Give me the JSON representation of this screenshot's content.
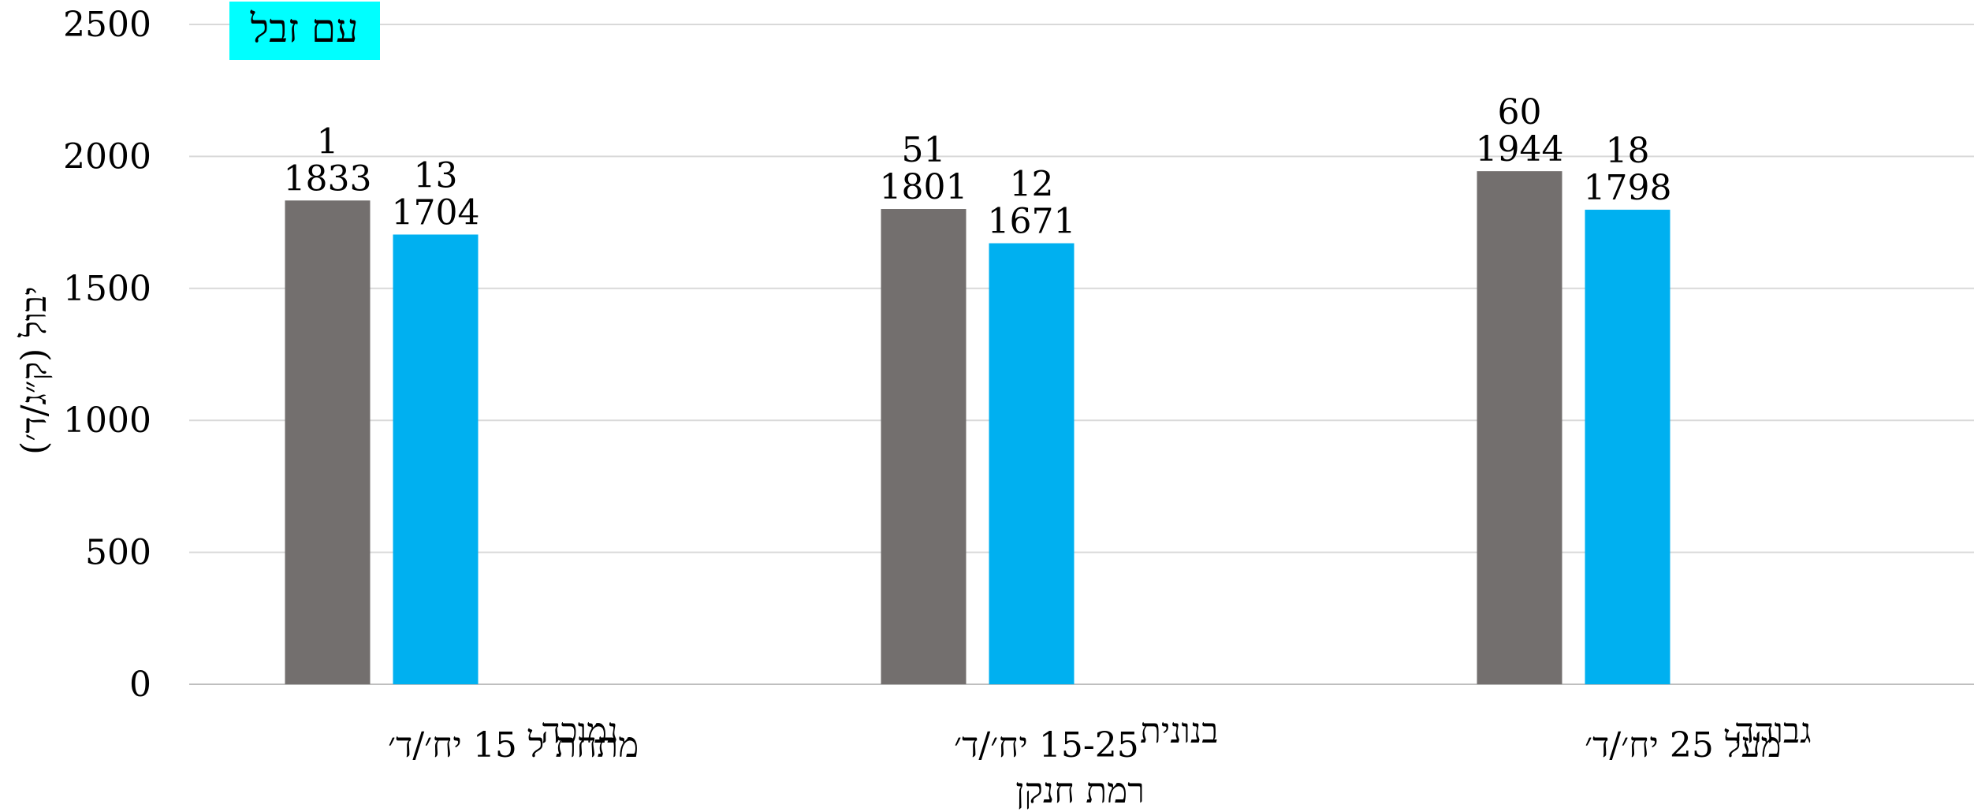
{
  "chart_data": {
    "type": "bar",
    "title": "עם זבל",
    "title_highlight_color": "#00FFFF",
    "xlabel": "רמת חנקן",
    "ylabel": "יבול (ק״ג/ד׳)",
    "ylim": [
      0,
      2500
    ],
    "yticks": [
      0,
      500,
      1000,
      1500,
      2000,
      2500
    ],
    "grid": true,
    "categories": [
      {
        "right": "נמוכה",
        "left": "מתחת ל 15 יח׳/ד׳"
      },
      {
        "right": "בנונית",
        "left": "15-25 יח׳/ד׳"
      },
      {
        "right": "גבוהה",
        "left": "מעל 25 יח׳/ד׳"
      }
    ],
    "series": [
      {
        "values": [
          1833,
          1801,
          1944
        ],
        "labels": [
          "1",
          "51",
          "60"
        ],
        "color": "#736F6E"
      },
      {
        "values": [
          1704,
          1671,
          1798
        ],
        "labels": [
          "13",
          "12",
          "18"
        ],
        "color": "#00B0F0"
      }
    ]
  }
}
